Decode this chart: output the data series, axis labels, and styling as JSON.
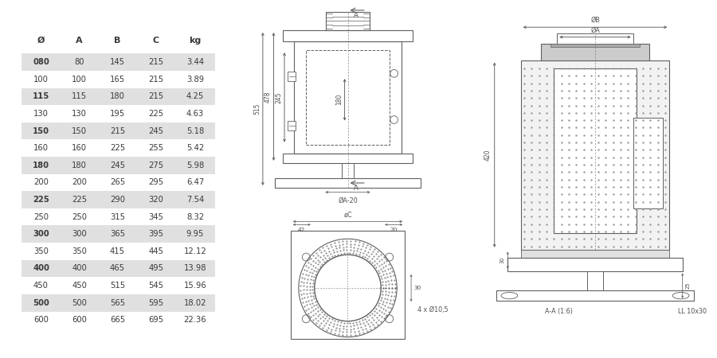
{
  "table_headers": [
    "Ø",
    "A",
    "B",
    "C",
    "kg"
  ],
  "table_data": [
    [
      "080",
      "80",
      "145",
      "215",
      "3.44"
    ],
    [
      "100",
      "100",
      "165",
      "215",
      "3.89"
    ],
    [
      "115",
      "115",
      "180",
      "215",
      "4.25"
    ],
    [
      "130",
      "130",
      "195",
      "225",
      "4.63"
    ],
    [
      "150",
      "150",
      "215",
      "245",
      "5.18"
    ],
    [
      "160",
      "160",
      "225",
      "255",
      "5.42"
    ],
    [
      "180",
      "180",
      "245",
      "275",
      "5.98"
    ],
    [
      "200",
      "200",
      "265",
      "295",
      "6.47"
    ],
    [
      "225",
      "225",
      "290",
      "320",
      "7.54"
    ],
    [
      "250",
      "250",
      "315",
      "345",
      "8.32"
    ],
    [
      "300",
      "300",
      "365",
      "395",
      "9.95"
    ],
    [
      "350",
      "350",
      "415",
      "445",
      "12.12"
    ],
    [
      "400",
      "400",
      "465",
      "495",
      "13.98"
    ],
    [
      "450",
      "450",
      "515",
      "545",
      "15.96"
    ],
    [
      "500",
      "500",
      "565",
      "595",
      "18.02"
    ],
    [
      "600",
      "600",
      "665",
      "695",
      "22.36"
    ]
  ],
  "shaded_rows": [
    0,
    2,
    4,
    6,
    8,
    10,
    12,
    14
  ],
  "row_shade_color": "#e0e0e0",
  "bg_color": "#ffffff",
  "text_color": "#3a3a3a",
  "line_color": "#606060",
  "dim_color": "#505050",
  "font_size_table": 7.2,
  "font_size_dim": 5.8
}
